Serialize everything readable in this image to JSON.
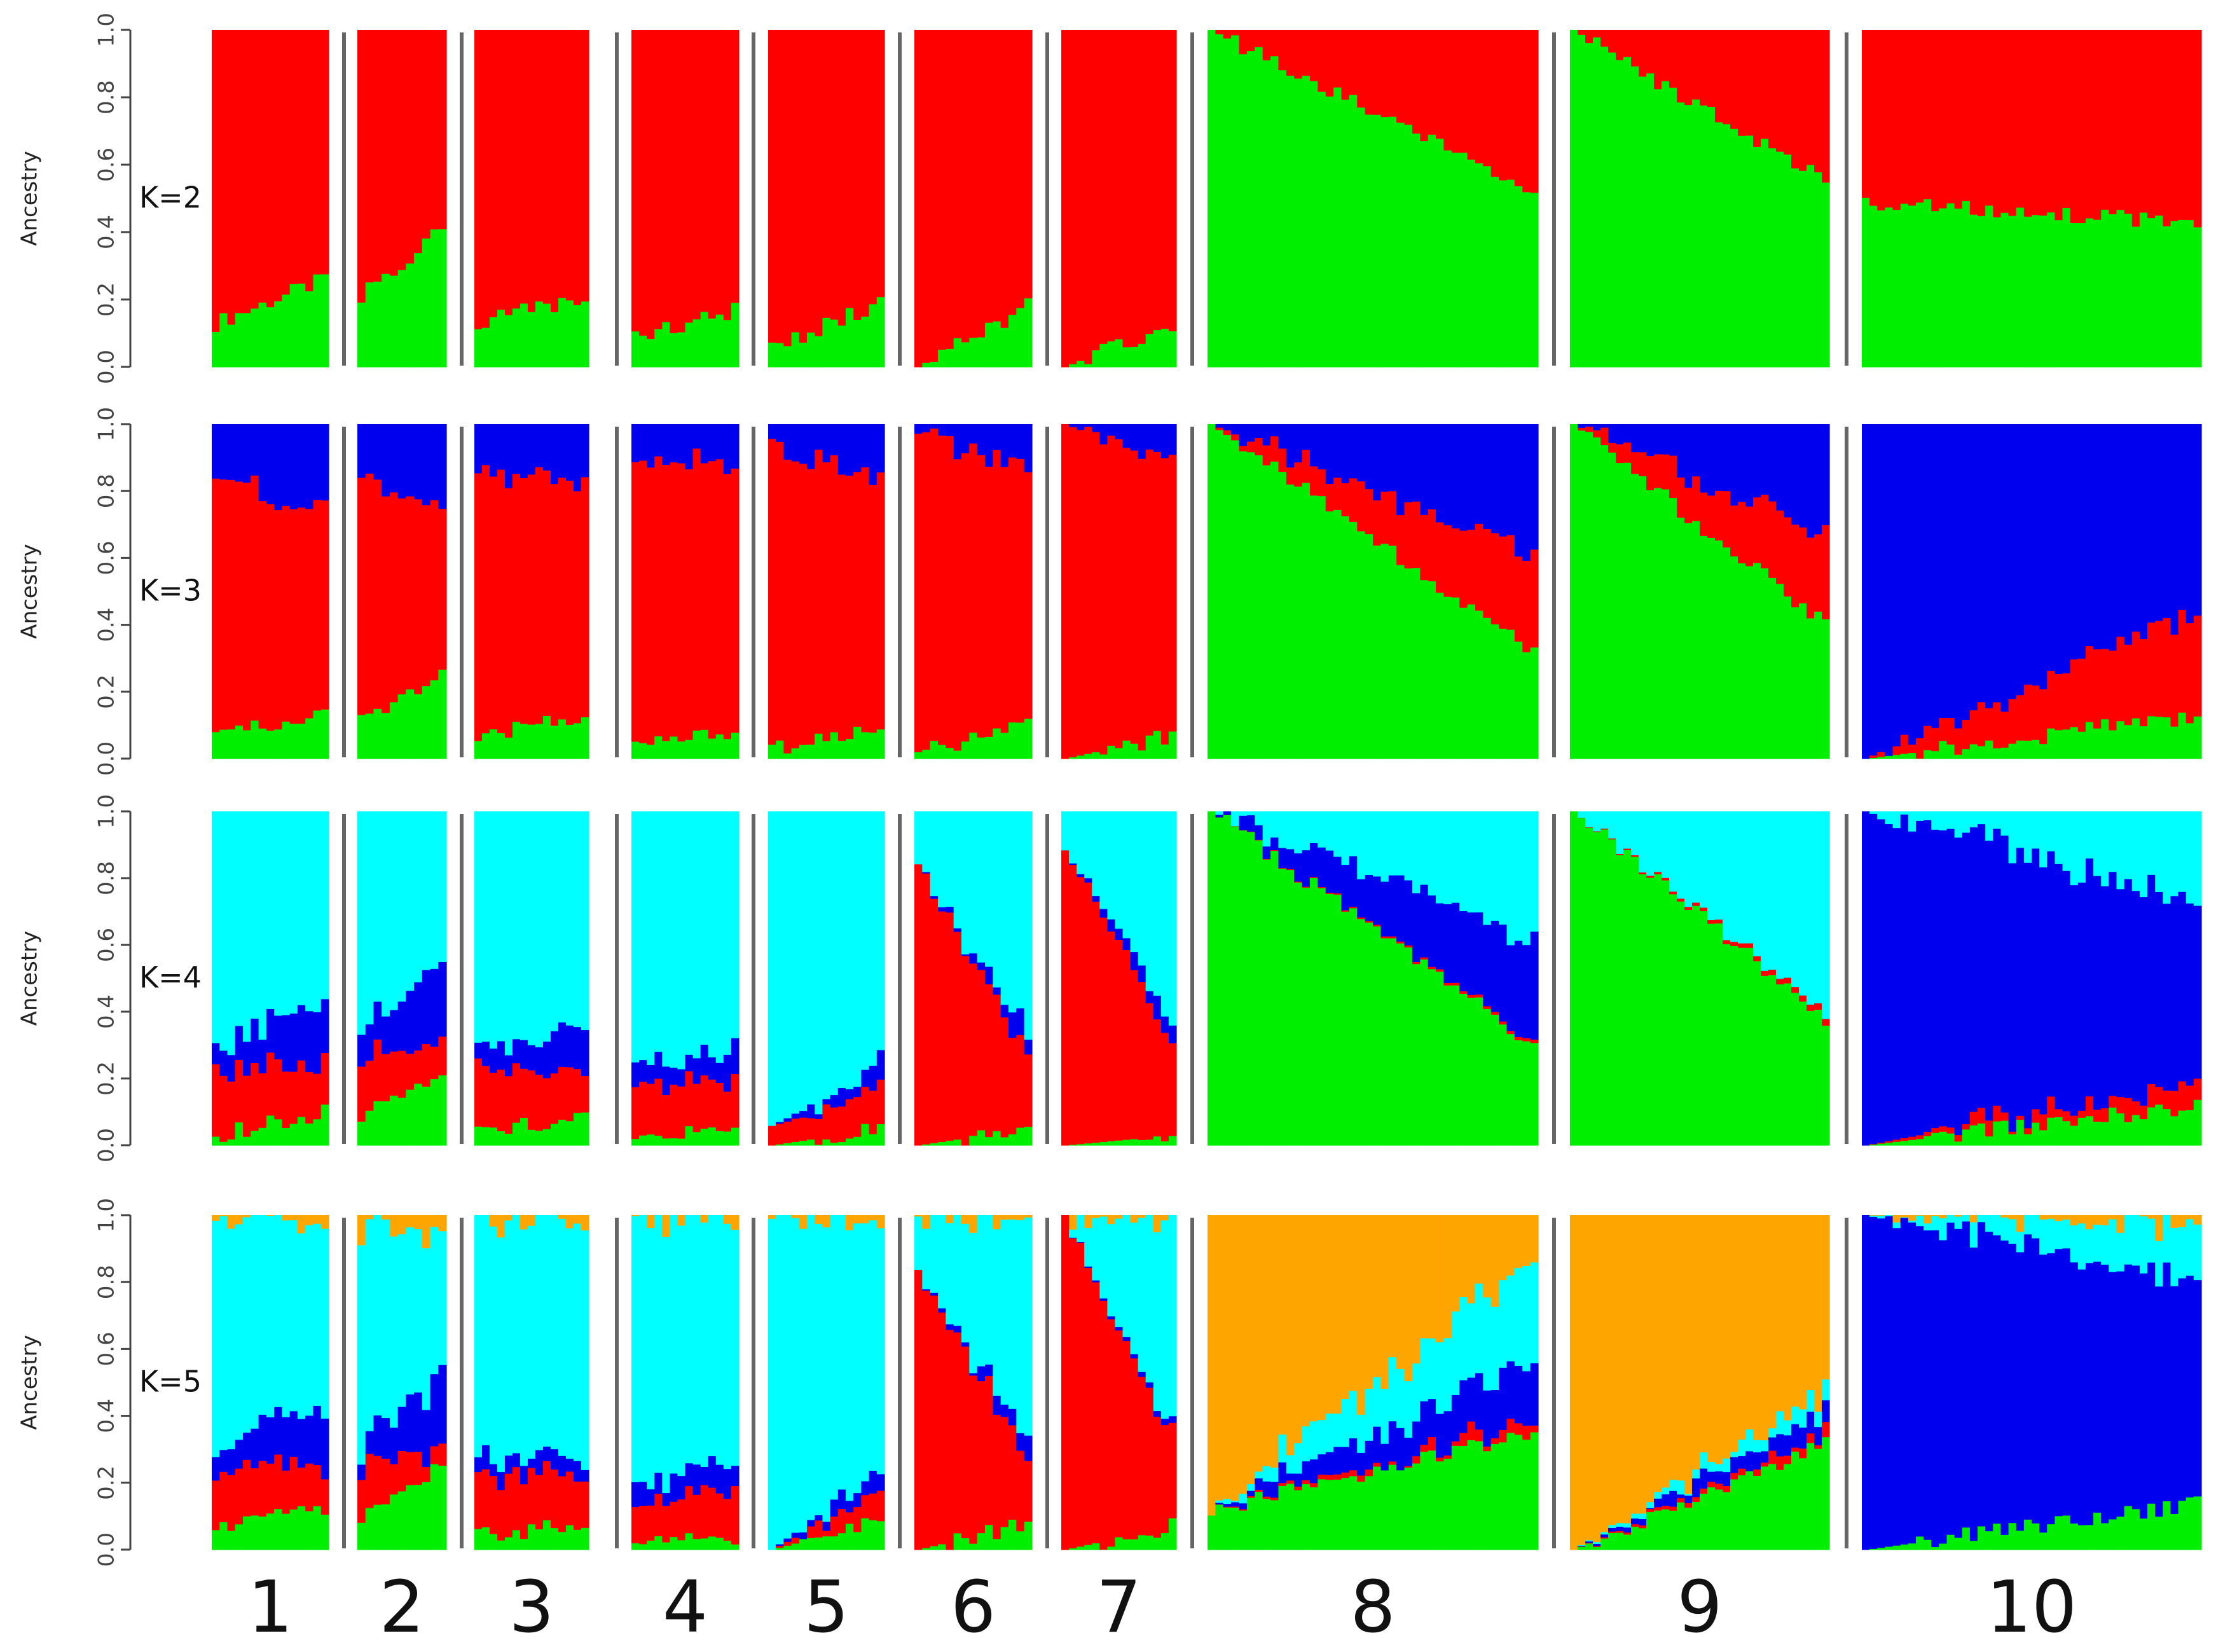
{
  "chart_data": {
    "type": "stacked-bar (admixture / STRUCTURE plot)",
    "ylabel": "Ancestry",
    "ylim": [
      0,
      1
    ],
    "yticks": [
      "0.0",
      "0.2",
      "0.4",
      "0.6",
      "0.8",
      "1.0"
    ],
    "population_labels": [
      "1",
      "2",
      "3",
      "4",
      "5",
      "6",
      "7",
      "8",
      "9",
      "10"
    ],
    "population_sizes": [
      15,
      11,
      15,
      14,
      15,
      15,
      15,
      42,
      34,
      44
    ],
    "colors": {
      "green": "#00ee00",
      "red": "#ff0000",
      "blue": "#0000ee",
      "cyan": "#00ffff",
      "orange": "#ffa500"
    },
    "panels": [
      {
        "label": "K=2",
        "note": "values = green (bottom) proportion per population, start to end of sorted individuals; remainder red",
        "stack_order": [
          "green",
          "red"
        ],
        "populations": [
          {
            "pop": "1",
            "green": [
              0.13,
              0.26
            ]
          },
          {
            "pop": "2",
            "green": [
              0.21,
              0.41
            ]
          },
          {
            "pop": "3",
            "green": [
              0.13,
              0.21
            ]
          },
          {
            "pop": "4",
            "green": [
              0.09,
              0.17
            ]
          },
          {
            "pop": "5",
            "green": [
              0.06,
              0.19
            ]
          },
          {
            "pop": "6",
            "green": [
              0.0,
              0.18
            ]
          },
          {
            "pop": "7",
            "green": [
              0.0,
              0.13
            ]
          },
          {
            "pop": "8",
            "green": [
              1.0,
              0.51
            ]
          },
          {
            "pop": "9",
            "green": [
              1.0,
              0.55
            ]
          },
          {
            "pop": "10",
            "green": [
              0.49,
              0.43
            ]
          }
        ]
      },
      {
        "label": "K=3",
        "stack_order": [
          "green",
          "red",
          "blue"
        ],
        "populations": [
          {
            "pop": "1",
            "green": [
              0.07,
              0.13
            ],
            "red": [
              0.78,
              0.6
            ]
          },
          {
            "pop": "2",
            "green": [
              0.12,
              0.26
            ],
            "red": [
              0.72,
              0.5
            ]
          },
          {
            "pop": "3",
            "green": [
              0.07,
              0.13
            ],
            "red": [
              0.79,
              0.71
            ]
          },
          {
            "pop": "4",
            "green": [
              0.04,
              0.08
            ],
            "red": [
              0.85,
              0.8
            ]
          },
          {
            "pop": "5",
            "green": [
              0.03,
              0.09
            ],
            "red": [
              0.9,
              0.75
            ]
          },
          {
            "pop": "6",
            "green": [
              0.02,
              0.1
            ],
            "red": [
              0.97,
              0.75
            ]
          },
          {
            "pop": "7",
            "green": [
              0.0,
              0.07
            ],
            "red": [
              1.0,
              0.82
            ]
          },
          {
            "pop": "8",
            "green": [
              1.0,
              0.32
            ],
            "red": [
              0.0,
              0.29
            ]
          },
          {
            "pop": "9",
            "green": [
              1.0,
              0.4
            ],
            "red": [
              0.0,
              0.26
            ]
          },
          {
            "pop": "10",
            "green": [
              0.0,
              0.13
            ],
            "red": [
              0.0,
              0.31
            ]
          }
        ]
      },
      {
        "label": "K=4",
        "stack_order": [
          "green",
          "red",
          "blue",
          "cyan"
        ],
        "populations": [
          {
            "pop": "1",
            "green": [
              0.03,
              0.1
            ],
            "red": [
              0.2,
              0.15
            ],
            "blue": [
              0.08,
              0.18
            ]
          },
          {
            "pop": "2",
            "green": [
              0.09,
              0.22
            ],
            "red": [
              0.18,
              0.1
            ],
            "blue": [
              0.09,
              0.23
            ]
          },
          {
            "pop": "3",
            "green": [
              0.04,
              0.09
            ],
            "red": [
              0.18,
              0.13
            ],
            "blue": [
              0.07,
              0.12
            ]
          },
          {
            "pop": "4",
            "green": [
              0.02,
              0.05
            ],
            "red": [
              0.16,
              0.14
            ],
            "blue": [
              0.05,
              0.09
            ]
          },
          {
            "pop": "5",
            "green": [
              0.0,
              0.05
            ],
            "red": [
              0.04,
              0.13
            ],
            "blue": [
              0.0,
              0.07
            ]
          },
          {
            "pop": "6",
            "green": [
              0.0,
              0.05
            ],
            "red": [
              0.84,
              0.21
            ],
            "blue": [
              0.0,
              0.06
            ]
          },
          {
            "pop": "7",
            "green": [
              0.0,
              0.03
            ],
            "red": [
              0.9,
              0.28
            ],
            "blue": [
              0.0,
              0.06
            ]
          },
          {
            "pop": "8",
            "green": [
              1.0,
              0.3
            ],
            "red": [
              0.0,
              0.01
            ],
            "blue": [
              0.0,
              0.3
            ]
          },
          {
            "pop": "9",
            "green": [
              1.0,
              0.38
            ],
            "red": [
              0.0,
              0.02
            ],
            "blue": [
              0.0,
              0.0
            ]
          },
          {
            "pop": "10",
            "green": [
              0.0,
              0.12
            ],
            "red": [
              0.0,
              0.07
            ],
            "blue": [
              1.0,
              0.54
            ]
          }
        ]
      },
      {
        "label": "K=5",
        "stack_order": [
          "green",
          "red",
          "blue",
          "cyan",
          "orange"
        ],
        "populations": [
          {
            "pop": "1",
            "green": [
              0.06,
              0.13
            ],
            "red": [
              0.17,
              0.13
            ],
            "blue": [
              0.07,
              0.18
            ],
            "cyan": [
              0.69,
              0.55
            ]
          },
          {
            "pop": "2",
            "green": [
              0.09,
              0.26
            ],
            "red": [
              0.15,
              0.05
            ],
            "blue": [
              0.07,
              0.21
            ],
            "cyan": [
              0.65,
              0.42
            ]
          },
          {
            "pop": "3",
            "green": [
              0.04,
              0.08
            ],
            "red": [
              0.18,
              0.16
            ],
            "blue": [
              0.05,
              0.05
            ],
            "cyan": [
              0.72,
              0.7
            ]
          },
          {
            "pop": "4",
            "green": [
              0.02,
              0.04
            ],
            "red": [
              0.1,
              0.15
            ],
            "blue": [
              0.05,
              0.08
            ],
            "cyan": [
              0.81,
              0.72
            ]
          },
          {
            "pop": "5",
            "green": [
              0.0,
              0.09
            ],
            "red": [
              0.0,
              0.08
            ],
            "blue": [
              0.0,
              0.07
            ],
            "cyan": [
              0.99,
              0.75
            ]
          },
          {
            "pop": "6",
            "green": [
              0.0,
              0.08
            ],
            "red": [
              0.82,
              0.2
            ],
            "blue": [
              0.0,
              0.06
            ],
            "cyan": [
              0.17,
              0.65
            ]
          },
          {
            "pop": "7",
            "green": [
              0.0,
              0.07
            ],
            "red": [
              1.0,
              0.27
            ],
            "blue": [
              0.0,
              0.02
            ],
            "cyan": [
              0.0,
              0.64
            ]
          },
          {
            "pop": "8",
            "green": [
              0.12,
              0.35
            ],
            "red": [
              0.0,
              0.04
            ],
            "blue": [
              0.0,
              0.18
            ],
            "cyan": [
              0.0,
              0.3
            ]
          },
          {
            "pop": "9",
            "green": [
              0.0,
              0.32
            ],
            "red": [
              0.0,
              0.03
            ],
            "blue": [
              0.0,
              0.07
            ],
            "cyan": [
              0.0,
              0.06
            ]
          },
          {
            "pop": "10",
            "green": [
              0.0,
              0.14
            ],
            "red": [
              0.0,
              0.0
            ],
            "blue": [
              1.0,
              0.67
            ],
            "cyan": [
              0.0,
              0.18
            ]
          }
        ]
      }
    ]
  }
}
